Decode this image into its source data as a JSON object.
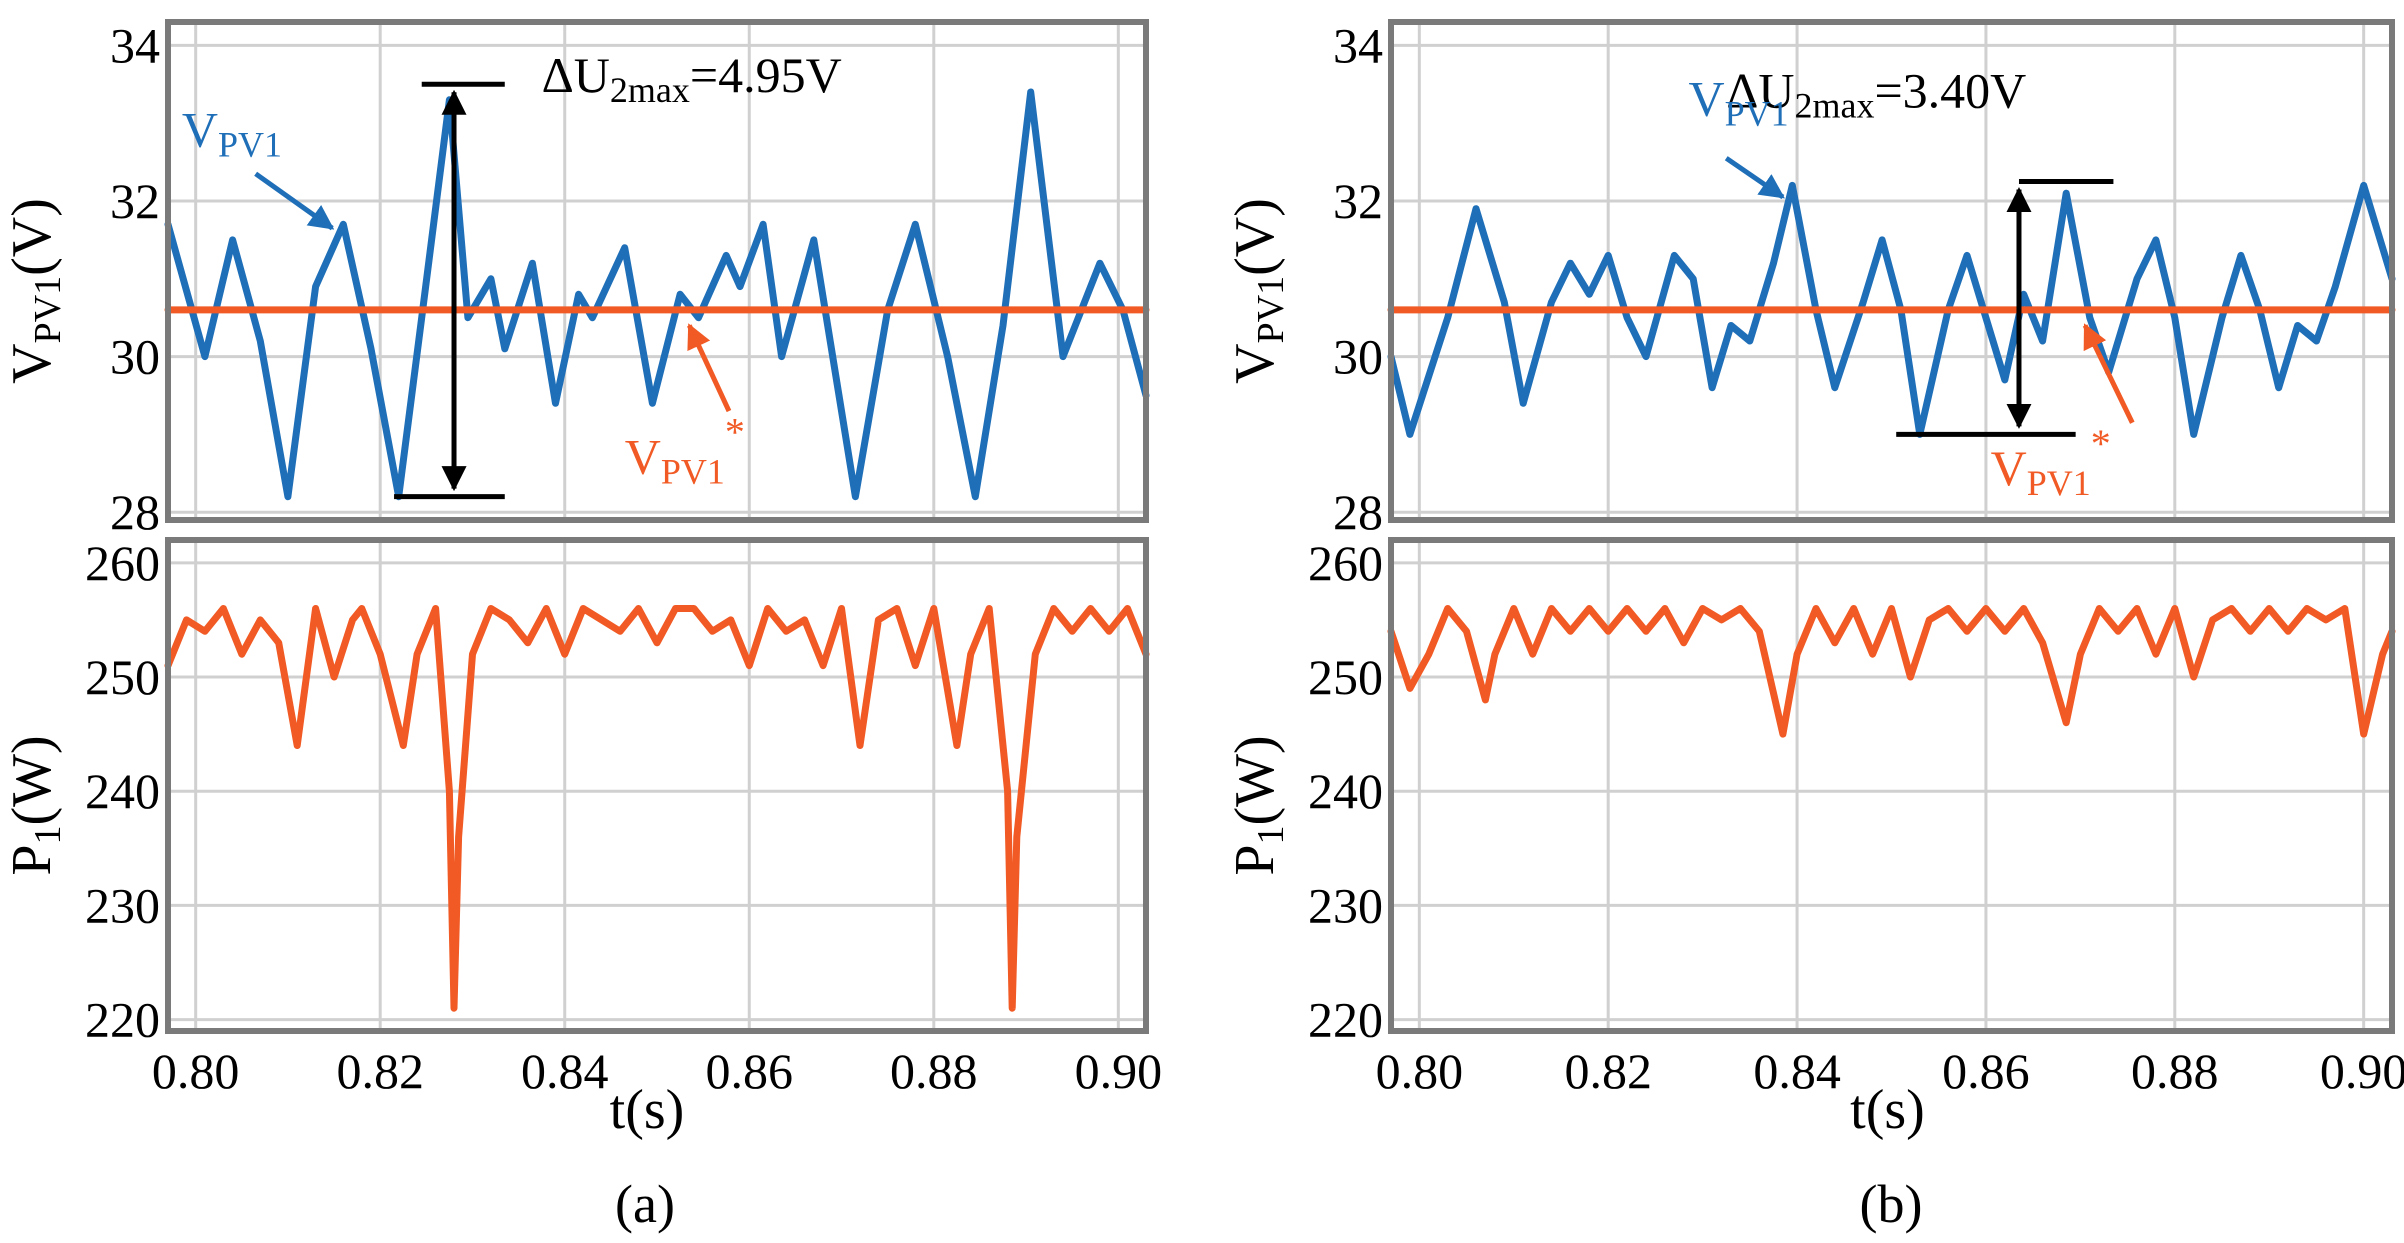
{
  "colors": {
    "blue": "#1f6fb8",
    "red": "#f15a24",
    "grid": "#d0d0d0",
    "frame": "#7a7a7a"
  },
  "chart_data": [
    {
      "panel": "(a)",
      "type": "line",
      "x_range": [
        0.797,
        0.903
      ],
      "x_ticks": [
        0.8,
        0.82,
        0.84,
        0.86,
        0.88,
        0.9
      ],
      "x_tick_labels": [
        "0.80",
        "0.82",
        "0.84",
        "0.86",
        "0.88",
        "0.90"
      ],
      "xlabel": "t(s)",
      "top": {
        "ylabel_main": "V",
        "ylabel_sub": "PV1",
        "ylabel_tail": "(V)",
        "ylim": [
          27.9,
          34.3
        ],
        "y_ticks": [
          28,
          30,
          32,
          34
        ],
        "y_tick_labels": [
          "28",
          "30",
          "32",
          "34"
        ],
        "series": [
          {
            "name": "VPV1",
            "color": "#1f6fb8",
            "points": [
              [
                0.797,
                31.7
              ],
              [
                0.801,
                30.0
              ],
              [
                0.804,
                31.5
              ],
              [
                0.807,
                30.2
              ],
              [
                0.81,
                28.2
              ],
              [
                0.813,
                30.9
              ],
              [
                0.816,
                31.7
              ],
              [
                0.819,
                30.1
              ],
              [
                0.822,
                28.2
              ],
              [
                0.8245,
                30.5
              ],
              [
                0.8275,
                33.3
              ],
              [
                0.8295,
                30.5
              ],
              [
                0.832,
                31.0
              ],
              [
                0.8335,
                30.1
              ],
              [
                0.8365,
                31.2
              ],
              [
                0.839,
                29.4
              ],
              [
                0.8415,
                30.8
              ],
              [
                0.843,
                30.5
              ],
              [
                0.8465,
                31.4
              ],
              [
                0.8495,
                29.4
              ],
              [
                0.8525,
                30.8
              ],
              [
                0.8545,
                30.5
              ],
              [
                0.8575,
                31.3
              ],
              [
                0.859,
                30.9
              ],
              [
                0.8615,
                31.7
              ],
              [
                0.8635,
                30.0
              ],
              [
                0.867,
                31.5
              ],
              [
                0.8715,
                28.2
              ],
              [
                0.875,
                30.6
              ],
              [
                0.878,
                31.7
              ],
              [
                0.8815,
                30.0
              ],
              [
                0.8845,
                28.2
              ],
              [
                0.8875,
                30.4
              ],
              [
                0.8905,
                33.4
              ],
              [
                0.894,
                30.0
              ],
              [
                0.898,
                31.2
              ],
              [
                0.9005,
                30.6
              ],
              [
                0.903,
                29.5
              ]
            ]
          },
          {
            "name": "VPV1*",
            "color": "#f15a24",
            "points": [
              [
                0.797,
                30.6
              ],
              [
                0.903,
                30.6
              ]
            ]
          }
        ],
        "annotations": {
          "delta_main": "ΔU",
          "delta_sub": "2max",
          "delta_value": "=4.95V",
          "label_blue_main": "V",
          "label_blue_sub": "PV1",
          "label_red_main": "V",
          "label_red_sub": "PV1",
          "label_red_sup": "*"
        }
      },
      "bottom": {
        "ylabel_main": "P",
        "ylabel_sub": "1",
        "ylabel_tail": "(W)",
        "ylim": [
          219,
          262
        ],
        "y_ticks": [
          220,
          230,
          240,
          250,
          260
        ],
        "y_tick_labels": [
          "220",
          "230",
          "240",
          "250",
          "260"
        ],
        "series": [
          {
            "name": "P1",
            "color": "#f15a24",
            "points": [
              [
                0.797,
                251
              ],
              [
                0.799,
                255
              ],
              [
                0.801,
                254
              ],
              [
                0.803,
                256
              ],
              [
                0.805,
                252
              ],
              [
                0.807,
                255
              ],
              [
                0.809,
                253
              ],
              [
                0.811,
                244
              ],
              [
                0.812,
                250
              ],
              [
                0.813,
                256
              ],
              [
                0.815,
                250
              ],
              [
                0.817,
                255
              ],
              [
                0.818,
                256
              ],
              [
                0.82,
                252
              ],
              [
                0.8225,
                244
              ],
              [
                0.824,
                252
              ],
              [
                0.826,
                256
              ],
              [
                0.8275,
                240
              ],
              [
                0.828,
                221
              ],
              [
                0.8285,
                236
              ],
              [
                0.83,
                252
              ],
              [
                0.832,
                256
              ],
              [
                0.834,
                255
              ],
              [
                0.836,
                253
              ],
              [
                0.838,
                256
              ],
              [
                0.84,
                252
              ],
              [
                0.842,
                256
              ],
              [
                0.844,
                255
              ],
              [
                0.846,
                254
              ],
              [
                0.848,
                256
              ],
              [
                0.85,
                253
              ],
              [
                0.852,
                256
              ],
              [
                0.854,
                256
              ],
              [
                0.856,
                254
              ],
              [
                0.858,
                255
              ],
              [
                0.86,
                251
              ],
              [
                0.862,
                256
              ],
              [
                0.864,
                254
              ],
              [
                0.866,
                255
              ],
              [
                0.868,
                251
              ],
              [
                0.87,
                256
              ],
              [
                0.872,
                244
              ],
              [
                0.874,
                255
              ],
              [
                0.876,
                256
              ],
              [
                0.878,
                251
              ],
              [
                0.88,
                256
              ],
              [
                0.8825,
                244
              ],
              [
                0.884,
                252
              ],
              [
                0.886,
                256
              ],
              [
                0.888,
                240
              ],
              [
                0.8885,
                221
              ],
              [
                0.889,
                236
              ],
              [
                0.891,
                252
              ],
              [
                0.893,
                256
              ],
              [
                0.895,
                254
              ],
              [
                0.897,
                256
              ],
              [
                0.899,
                254
              ],
              [
                0.901,
                256
              ],
              [
                0.903,
                252
              ]
            ]
          }
        ]
      }
    },
    {
      "panel": "(b)",
      "type": "line",
      "x_range": [
        0.797,
        0.903
      ],
      "x_ticks": [
        0.8,
        0.82,
        0.84,
        0.86,
        0.88,
        0.9
      ],
      "x_tick_labels": [
        "0.80",
        "0.82",
        "0.84",
        "0.86",
        "0.88",
        "0.90"
      ],
      "xlabel": "t(s)",
      "top": {
        "ylabel_main": "V",
        "ylabel_sub": "PV1",
        "ylabel_tail": "(V)",
        "ylim": [
          27.9,
          34.3
        ],
        "y_ticks": [
          28,
          30,
          32,
          34
        ],
        "y_tick_labels": [
          "28",
          "30",
          "32",
          "34"
        ],
        "series": [
          {
            "name": "VPV1",
            "color": "#1f6fb8",
            "points": [
              [
                0.797,
                30.0
              ],
              [
                0.799,
                29.0
              ],
              [
                0.803,
                30.5
              ],
              [
                0.806,
                31.9
              ],
              [
                0.809,
                30.7
              ],
              [
                0.811,
                29.4
              ],
              [
                0.814,
                30.7
              ],
              [
                0.816,
                31.2
              ],
              [
                0.818,
                30.8
              ],
              [
                0.82,
                31.3
              ],
              [
                0.822,
                30.5
              ],
              [
                0.824,
                30.0
              ],
              [
                0.827,
                31.3
              ],
              [
                0.829,
                31.0
              ],
              [
                0.831,
                29.6
              ],
              [
                0.833,
                30.4
              ],
              [
                0.835,
                30.2
              ],
              [
                0.8375,
                31.2
              ],
              [
                0.8395,
                32.2
              ],
              [
                0.842,
                30.6
              ],
              [
                0.844,
                29.6
              ],
              [
                0.847,
                30.7
              ],
              [
                0.849,
                31.5
              ],
              [
                0.851,
                30.6
              ],
              [
                0.853,
                29.0
              ],
              [
                0.856,
                30.6
              ],
              [
                0.858,
                31.3
              ],
              [
                0.86,
                30.5
              ],
              [
                0.862,
                29.7
              ],
              [
                0.864,
                30.8
              ],
              [
                0.866,
                30.2
              ],
              [
                0.8685,
                32.1
              ],
              [
                0.871,
                30.5
              ],
              [
                0.873,
                29.8
              ],
              [
                0.876,
                31.0
              ],
              [
                0.878,
                31.5
              ],
              [
                0.88,
                30.5
              ],
              [
                0.882,
                29.0
              ],
              [
                0.885,
                30.5
              ],
              [
                0.887,
                31.3
              ],
              [
                0.889,
                30.6
              ],
              [
                0.891,
                29.6
              ],
              [
                0.893,
                30.4
              ],
              [
                0.895,
                30.2
              ],
              [
                0.897,
                30.9
              ],
              [
                0.9,
                32.2
              ],
              [
                0.903,
                31.0
              ]
            ]
          },
          {
            "name": "VPV1*",
            "color": "#f15a24",
            "points": [
              [
                0.797,
                30.6
              ],
              [
                0.903,
                30.6
              ]
            ]
          }
        ],
        "annotations": {
          "delta_main": "ΔU",
          "delta_sub": "2max",
          "delta_value": "=3.40V",
          "label_blue_main": "V",
          "label_blue_sub": "PV1",
          "label_red_main": "V",
          "label_red_sub": "PV1",
          "label_red_sup": "*"
        }
      },
      "bottom": {
        "ylabel_main": "P",
        "ylabel_sub": "1",
        "ylabel_tail": "(W)",
        "ylim": [
          219,
          262
        ],
        "y_ticks": [
          220,
          230,
          240,
          250,
          260
        ],
        "y_tick_labels": [
          "220",
          "230",
          "240",
          "250",
          "260"
        ],
        "series": [
          {
            "name": "P1",
            "color": "#f15a24",
            "points": [
              [
                0.797,
                254
              ],
              [
                0.799,
                249
              ],
              [
                0.801,
                252
              ],
              [
                0.803,
                256
              ],
              [
                0.805,
                254
              ],
              [
                0.807,
                248
              ],
              [
                0.808,
                252
              ],
              [
                0.81,
                256
              ],
              [
                0.812,
                252
              ],
              [
                0.814,
                256
              ],
              [
                0.816,
                254
              ],
              [
                0.818,
                256
              ],
              [
                0.82,
                254
              ],
              [
                0.822,
                256
              ],
              [
                0.824,
                254
              ],
              [
                0.826,
                256
              ],
              [
                0.828,
                253
              ],
              [
                0.83,
                256
              ],
              [
                0.832,
                255
              ],
              [
                0.834,
                256
              ],
              [
                0.836,
                254
              ],
              [
                0.8385,
                245
              ],
              [
                0.84,
                252
              ],
              [
                0.842,
                256
              ],
              [
                0.844,
                253
              ],
              [
                0.846,
                256
              ],
              [
                0.848,
                252
              ],
              [
                0.85,
                256
              ],
              [
                0.852,
                250
              ],
              [
                0.854,
                255
              ],
              [
                0.856,
                256
              ],
              [
                0.858,
                254
              ],
              [
                0.86,
                256
              ],
              [
                0.862,
                254
              ],
              [
                0.864,
                256
              ],
              [
                0.866,
                253
              ],
              [
                0.8685,
                246
              ],
              [
                0.87,
                252
              ],
              [
                0.872,
                256
              ],
              [
                0.874,
                254
              ],
              [
                0.876,
                256
              ],
              [
                0.878,
                252
              ],
              [
                0.88,
                256
              ],
              [
                0.882,
                250
              ],
              [
                0.884,
                255
              ],
              [
                0.886,
                256
              ],
              [
                0.888,
                254
              ],
              [
                0.89,
                256
              ],
              [
                0.892,
                254
              ],
              [
                0.894,
                256
              ],
              [
                0.896,
                255
              ],
              [
                0.898,
                256
              ],
              [
                0.9,
                245
              ],
              [
                0.902,
                252
              ],
              [
                0.903,
                254
              ]
            ]
          }
        ]
      }
    }
  ]
}
